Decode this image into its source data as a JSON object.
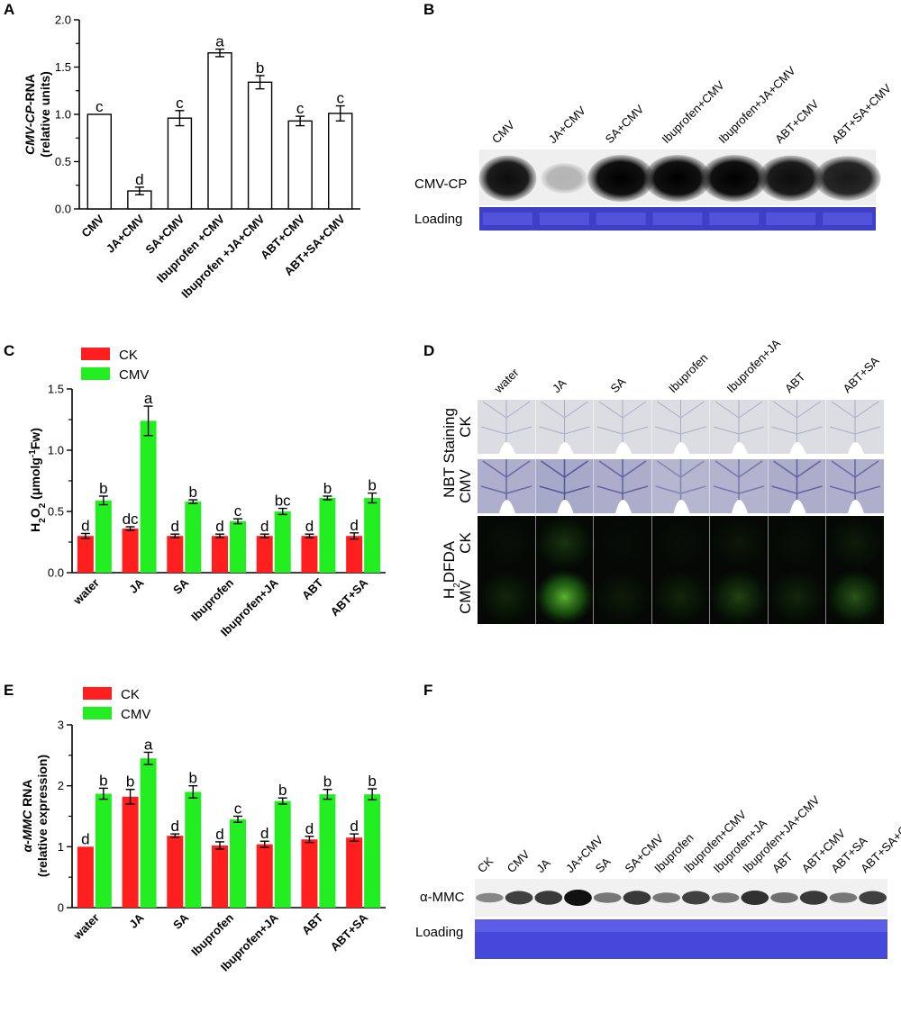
{
  "panels": {
    "A": "A",
    "B": "B",
    "C": "C",
    "D": "D",
    "E": "E",
    "F": "F"
  },
  "chart_data": [
    {
      "id": "A",
      "type": "bar",
      "ylabel_italic": "CMV-CP",
      "ylabel_rest": "-RNA",
      "ylabel2": "(relative units)",
      "ylim": [
        0,
        2.0
      ],
      "yticks": [
        "0.0",
        "0.5",
        "1.0",
        "1.5",
        "2.0"
      ],
      "categories": [
        "CMV",
        "JA+CMV",
        "SA+CMV",
        "Ibuprofen +CMV",
        "Ibuprofen +JA+CMV",
        "ABT+CMV",
        "ABT+SA+CMV"
      ],
      "values": [
        1.0,
        0.19,
        0.96,
        1.65,
        1.34,
        0.93,
        1.01
      ],
      "errors": [
        0,
        0.04,
        0.08,
        0.04,
        0.07,
        0.05,
        0.08
      ],
      "letters": [
        "c",
        "d",
        "c",
        "a",
        "b",
        "c",
        "c"
      ]
    },
    {
      "id": "C",
      "type": "bar",
      "ylabel": "H2O2 (μmolg-1Fw)",
      "ylabel_parts": [
        "H",
        "2",
        "O",
        "2",
        " (μmolg",
        "-1",
        "Fw)"
      ],
      "ylim": [
        0,
        1.5
      ],
      "yticks": [
        "0.0",
        "0.5",
        "1.0",
        "1.5"
      ],
      "categories": [
        "water",
        "JA",
        "SA",
        "Ibuprofen",
        "Ibuprofen+JA",
        "ABT",
        "ABT+SA"
      ],
      "series": [
        {
          "name": "CK",
          "color": "#ff1f1f",
          "values": [
            0.3,
            0.36,
            0.3,
            0.3,
            0.3,
            0.3,
            0.3
          ],
          "errors": [
            0.02,
            0.015,
            0.015,
            0.015,
            0.015,
            0.015,
            0.025
          ],
          "letters": [
            "d",
            "dc",
            "d",
            "d",
            "d",
            "d",
            "d"
          ]
        },
        {
          "name": "CMV",
          "color": "#22ee22",
          "values": [
            0.59,
            1.24,
            0.58,
            0.42,
            0.5,
            0.61,
            0.61
          ],
          "errors": [
            0.035,
            0.12,
            0.015,
            0.02,
            0.025,
            0.015,
            0.04
          ],
          "letters": [
            "b",
            "a",
            "b",
            "c",
            "bc",
            "b",
            "b"
          ]
        }
      ]
    },
    {
      "id": "E",
      "type": "bar",
      "ylabel_italic": "α-MMC",
      "ylabel_rest": " RNA",
      "ylabel2": "(relative expression)",
      "ylim": [
        0,
        3
      ],
      "yticks": [
        "0",
        "1",
        "2",
        "3"
      ],
      "categories": [
        "water",
        "JA",
        "SA",
        "Ibuprofen",
        "Ibuprofen+JA",
        "ABT",
        "ABT+SA"
      ],
      "series": [
        {
          "name": "CK",
          "color": "#ff1f1f",
          "values": [
            1.0,
            1.82,
            1.18,
            1.02,
            1.04,
            1.12,
            1.15
          ],
          "errors": [
            0,
            0.12,
            0.03,
            0.06,
            0.05,
            0.05,
            0.06
          ],
          "letters": [
            "d",
            "b",
            "d",
            "d",
            "d",
            "d",
            "d"
          ]
        },
        {
          "name": "CMV",
          "color": "#22ee22",
          "values": [
            1.87,
            2.45,
            1.9,
            1.45,
            1.75,
            1.86,
            1.86
          ],
          "errors": [
            0.09,
            0.1,
            0.1,
            0.05,
            0.05,
            0.08,
            0.09
          ],
          "letters": [
            "b",
            "a",
            "b",
            "c",
            "b",
            "b",
            "b"
          ]
        }
      ]
    }
  ],
  "blotB": {
    "lanes": [
      "CMV",
      "JA+CMV",
      "SA+CMV",
      "Ibuprofen+CMV",
      "Ibuprofen+JA+CMV",
      "ABT+CMV",
      "ABT+SA+CMV"
    ],
    "band_label": "CMV-CP",
    "loading_label": "Loading"
  },
  "gridD": {
    "columns": [
      "water",
      "JA",
      "SA",
      "Ibuprofen",
      "Ibuprofen+JA",
      "ABT",
      "ABT+SA"
    ],
    "row_labels": [
      "CK",
      "CMV",
      "CK",
      "CMV"
    ],
    "group_nbt": "NBT Staining",
    "group_h2dfda_parts": [
      "H",
      "2",
      "DFDA"
    ]
  },
  "blotF": {
    "lanes": [
      "CK",
      "CMV",
      "JA",
      "JA+CMV",
      "SA",
      "SA+CMV",
      "Ibuprofen",
      "Ibuprofen+CMV",
      "Ibuprofen+JA",
      "Ibuprofen+JA+CMV",
      "ABT",
      "ABT+CMV",
      "ABT+SA",
      "ABT+SA+CMV"
    ],
    "band_label": "α-MMC",
    "loading_label": "Loading"
  }
}
